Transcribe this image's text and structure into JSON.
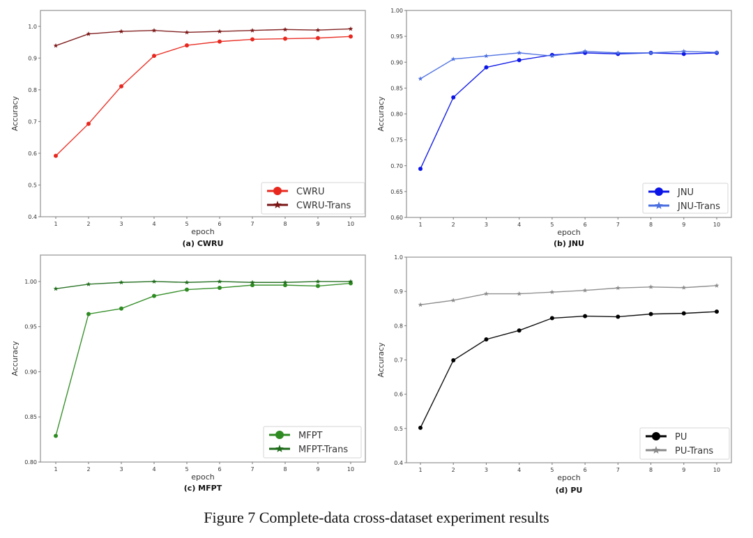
{
  "figure_caption": "Figure 7 Complete-data cross-dataset experiment results",
  "chart_data": [
    {
      "id": "a",
      "type": "line",
      "subcaption": "(a) CWRU",
      "xlabel": "epoch",
      "ylabel": "Accuracy",
      "x": [
        1,
        2,
        3,
        4,
        5,
        6,
        7,
        8,
        9,
        10
      ],
      "xticks": [
        "1",
        "2",
        "3",
        "4",
        "5",
        "6",
        "7",
        "8",
        "9",
        "10"
      ],
      "ylim": [
        0.4,
        1.05
      ],
      "yticks": [
        0.4,
        0.5,
        0.6,
        0.7,
        0.8,
        0.9,
        1.0
      ],
      "ytick_labels": [
        "0.4",
        "0.5",
        "0.6",
        "0.7",
        "0.8",
        "0.9",
        "1.0"
      ],
      "grid": false,
      "legend_position": "bottom-right",
      "series": [
        {
          "name": "CWRU",
          "color": "#e8281e",
          "marker": "circle",
          "values": [
            0.592,
            0.693,
            0.811,
            0.907,
            0.94,
            0.952,
            0.959,
            0.961,
            0.963,
            0.968
          ]
        },
        {
          "name": "CWRU-Trans",
          "color": "#7a1414",
          "marker": "star",
          "values": [
            0.939,
            0.976,
            0.984,
            0.987,
            0.981,
            0.984,
            0.987,
            0.99,
            0.988,
            0.992
          ]
        }
      ]
    },
    {
      "id": "b",
      "type": "line",
      "subcaption": "(b) JNU",
      "xlabel": "epoch",
      "ylabel": "Accuracy",
      "x": [
        1,
        2,
        3,
        4,
        5,
        6,
        7,
        8,
        9,
        10
      ],
      "xticks": [
        "1",
        "2",
        "3",
        "4",
        "5",
        "6",
        "7",
        "8",
        "9",
        "10"
      ],
      "ylim": [
        0.6,
        1.0
      ],
      "yticks": [
        0.6,
        0.65,
        0.7,
        0.75,
        0.8,
        0.85,
        0.9,
        0.95,
        1.0
      ],
      "ytick_labels": [
        "0.60",
        "0.65",
        "0.70",
        "0.75",
        "0.80",
        "0.85",
        "0.90",
        "0.95",
        "1.00"
      ],
      "grid": false,
      "legend_position": "bottom-right",
      "series": [
        {
          "name": "JNU",
          "color": "#0a14e6",
          "marker": "circle",
          "values": [
            0.694,
            0.832,
            0.89,
            0.904,
            0.914,
            0.918,
            0.916,
            0.918,
            0.916,
            0.918
          ]
        },
        {
          "name": "JNU-Trans",
          "color": "#4a6ee0",
          "marker": "star",
          "values": [
            0.868,
            0.906,
            0.912,
            0.918,
            0.912,
            0.921,
            0.918,
            0.918,
            0.921,
            0.919
          ]
        }
      ]
    },
    {
      "id": "c",
      "type": "line",
      "subcaption": "(c) MFPT",
      "xlabel": "epoch",
      "ylabel": "Accuracy",
      "x": [
        1,
        2,
        3,
        4,
        5,
        6,
        7,
        8,
        9,
        10
      ],
      "xticks": [
        "1",
        "2",
        "3",
        "4",
        "5",
        "6",
        "7",
        "8",
        "9",
        "10"
      ],
      "ylim": [
        0.8,
        1.0293
      ],
      "yticks": [
        0.8,
        0.85,
        0.9,
        0.95,
        1.0
      ],
      "ytick_labels": [
        "0.80",
        "0.85",
        "0.90",
        "0.95",
        "1.00"
      ],
      "grid": false,
      "legend_position": "bottom-right",
      "series": [
        {
          "name": "MFPT",
          "color": "#2e8b22",
          "marker": "circle",
          "values": [
            0.829,
            0.964,
            0.97,
            0.984,
            0.991,
            0.993,
            0.996,
            0.996,
            0.995,
            0.998
          ]
        },
        {
          "name": "MFPT-Trans",
          "color": "#1f6b1a",
          "marker": "star",
          "values": [
            0.992,
            0.997,
            0.999,
            1.0,
            0.999,
            1.0,
            0.999,
            0.999,
            1.0,
            1.0
          ]
        }
      ]
    },
    {
      "id": "d",
      "type": "line",
      "subcaption": "(d) PU",
      "xlabel": "epoch",
      "ylabel": "Accuracy",
      "x": [
        1,
        2,
        3,
        4,
        5,
        6,
        7,
        8,
        9,
        10
      ],
      "xticks": [
        "1",
        "2",
        "3",
        "4",
        "5",
        "6",
        "7",
        "8",
        "9",
        "10"
      ],
      "ylim": [
        0.4,
        1.0
      ],
      "yticks": [
        0.4,
        0.5,
        0.6,
        0.7,
        0.8,
        0.9,
        1.0
      ],
      "ytick_labels": [
        "0.4",
        "0.5",
        "0.6",
        "0.7",
        "0.8",
        "0.9",
        "1.0"
      ],
      "grid": false,
      "legend_position": "bottom-right",
      "series": [
        {
          "name": "PU",
          "color": "#000000",
          "marker": "circle",
          "values": [
            0.502,
            0.699,
            0.76,
            0.786,
            0.822,
            0.828,
            0.826,
            0.834,
            0.836,
            0.841
          ]
        },
        {
          "name": "PU-Trans",
          "color": "#8a8a8a",
          "marker": "star",
          "values": [
            0.861,
            0.874,
            0.893,
            0.893,
            0.898,
            0.903,
            0.91,
            0.913,
            0.911,
            0.917
          ]
        }
      ]
    }
  ]
}
